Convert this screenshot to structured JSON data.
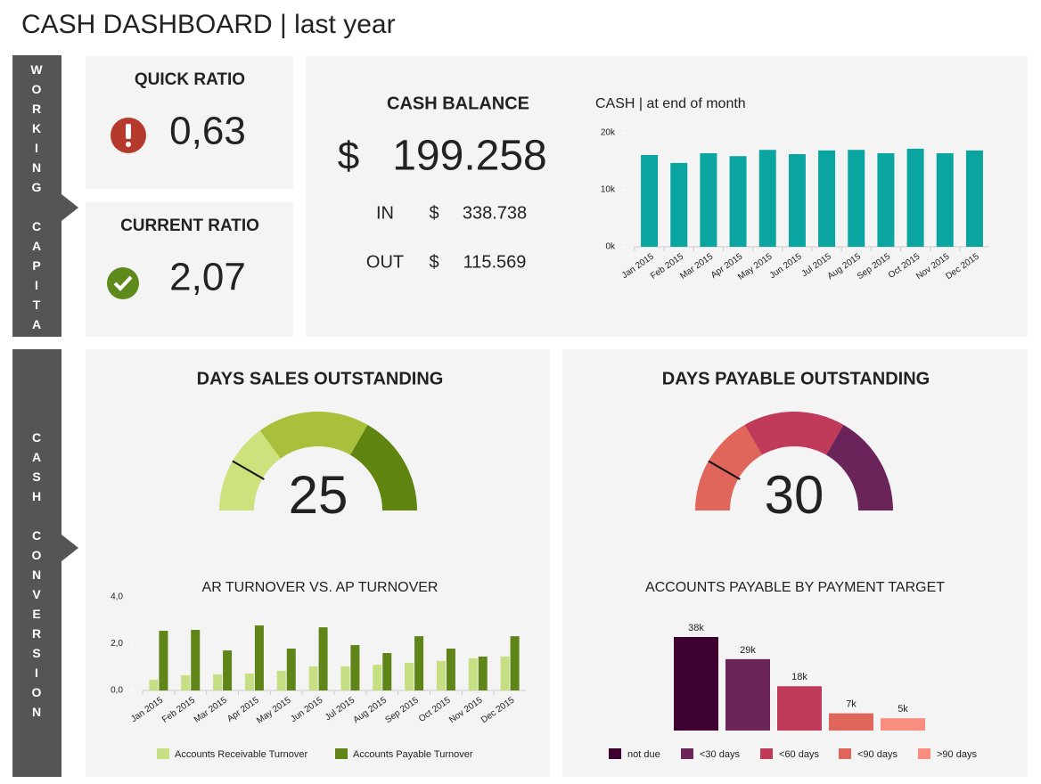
{
  "title": "CASH DASHBOARD | last year",
  "sections": [
    "WORKING CAPITAL",
    "CASH CONVERSION"
  ],
  "quick_ratio": {
    "label": "QUICK RATIO",
    "value": "0,63"
  },
  "current_ratio": {
    "label": "CURRENT RATIO",
    "value": "2,07"
  },
  "cash_balance": {
    "label": "CASH BALANCE",
    "currency": "$",
    "value": "199.258",
    "rows": [
      {
        "label": "IN",
        "currency": "$",
        "value": "338.738"
      },
      {
        "label": "OUT",
        "currency": "$",
        "value": "115.569"
      }
    ]
  },
  "chart_data": [
    {
      "type": "bar",
      "title": "CASH | at end of month",
      "categories": [
        "Jan 2015",
        "Feb 2015",
        "Mar 2015",
        "Apr 2015",
        "May 2015",
        "Jun 2015",
        "Jul 2015",
        "Aug 2015",
        "Sep 2015",
        "Oct 2015",
        "Nov 2015",
        "Dec 2015"
      ],
      "values": [
        16100,
        14700,
        16400,
        15900,
        17000,
        16250,
        16900,
        17000,
        16400,
        17200,
        16400,
        16900
      ],
      "color": "#0aa5a1",
      "ylim": [
        0,
        20000
      ],
      "yticks": [
        {
          "value": 0,
          "label": "0k"
        },
        {
          "value": 10000,
          "label": "10k"
        },
        {
          "value": 20000,
          "label": "20k"
        }
      ]
    },
    {
      "type": "gauge",
      "title": "DAYS SALES OUTSTANDING",
      "value": 25,
      "bands": [
        0,
        45,
        100,
        150
      ],
      "colors": [
        "#cde27c",
        "#a8c03c",
        "#5f8510"
      ]
    },
    {
      "type": "gauge",
      "title": "DAYS PAYABLE OUTSTANDING",
      "value": 30,
      "bands": [
        0,
        60,
        120,
        180
      ],
      "colors": [
        "#e0655a",
        "#c03a5a",
        "#6a2459"
      ]
    },
    {
      "type": "bar",
      "title": "AR TURNOVER VS. AP TURNOVER",
      "categories": [
        "Jan 2015",
        "Feb 2015",
        "Mar 2015",
        "Apr 2015",
        "May 2015",
        "Jun 2015",
        "Jul 2015",
        "Aug 2015",
        "Sep 2015",
        "Oct 2015",
        "Nov 2015",
        "Dec 2015"
      ],
      "series": [
        {
          "name": "Accounts Receivable Turnover",
          "color": "#c5df82",
          "values": [
            0.46,
            0.65,
            0.69,
            0.72,
            0.84,
            1.03,
            1.03,
            1.1,
            1.18,
            1.26,
            1.37,
            1.45
          ]
        },
        {
          "name": "Accounts Payable Turnover",
          "color": "#5f8518",
          "values": [
            2.55,
            2.59,
            1.71,
            2.78,
            1.79,
            2.7,
            1.94,
            1.6,
            2.32,
            1.79,
            1.45,
            2.32
          ]
        }
      ],
      "ylim": [
        0,
        4
      ],
      "yticks": [
        {
          "value": 0,
          "label": "0,0"
        },
        {
          "value": 2,
          "label": "2,0"
        },
        {
          "value": 4,
          "label": "4,0"
        }
      ]
    },
    {
      "type": "bar",
      "title": "ACCOUNTS PAYABLE BY PAYMENT TARGET",
      "categories": [
        "not due",
        "<30 days",
        "<60 days",
        "<90 days",
        ">90 days"
      ],
      "values": [
        38000,
        29000,
        18000,
        7000,
        5000
      ],
      "value_labels": [
        "38k",
        "29k",
        "18k",
        "7k",
        "5k"
      ],
      "colors": [
        "#3d0030",
        "#6b2559",
        "#c03a5a",
        "#e0655a",
        "#f98e80"
      ]
    }
  ]
}
